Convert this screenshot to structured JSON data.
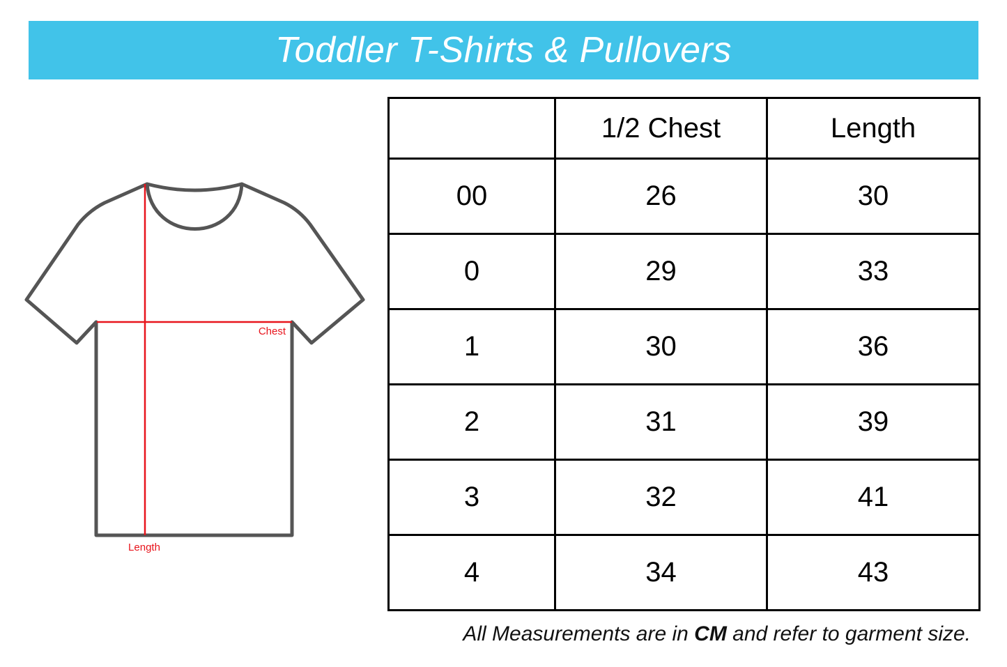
{
  "title": "Toddler T-Shirts & Pullovers",
  "colors": {
    "banner": "#41c3e9",
    "measure_line": "#e8141c",
    "shirt_outline": "#555555"
  },
  "diagram": {
    "chest_label": "Chest",
    "length_label": "Length"
  },
  "table": {
    "headers": [
      "",
      "1/2 Chest",
      "Length"
    ],
    "rows": [
      [
        "00",
        "26",
        "30"
      ],
      [
        "0",
        "29",
        "33"
      ],
      [
        "1",
        "30",
        "36"
      ],
      [
        "2",
        "31",
        "39"
      ],
      [
        "3",
        "32",
        "41"
      ],
      [
        "4",
        "34",
        "43"
      ]
    ]
  },
  "footnote": {
    "before": "All Measurements are in ",
    "unit": "CM",
    "after": " and refer to garment size."
  }
}
